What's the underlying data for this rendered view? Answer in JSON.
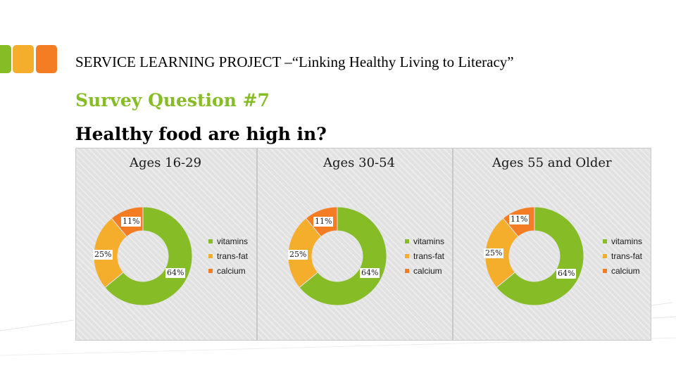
{
  "header": {
    "project_title": "SERVICE LEARNING PROJECT –“Linking Healthy Living to Literacy”",
    "survey_question": "Survey Question #7",
    "question_text": "Healthy food are high in?"
  },
  "colors": {
    "green": "#86bc25",
    "yellow": "#f5ad2c",
    "orange": "#f47d24"
  },
  "chart_data": [
    {
      "type": "pie",
      "title": "Ages 16-29",
      "categories": [
        "vitamins",
        "trans-fat",
        "calcium"
      ],
      "values": [
        64,
        25,
        11
      ],
      "labels": [
        "64%",
        "25%",
        "11%"
      ],
      "legend": "right"
    },
    {
      "type": "pie",
      "title": "Ages 30-54",
      "categories": [
        "vitamins",
        "trans-fat",
        "calcium"
      ],
      "values": [
        64,
        25,
        11
      ],
      "labels": [
        "64%",
        "25%",
        "11%"
      ],
      "legend": "right"
    },
    {
      "type": "pie",
      "title": "Ages 55 and Older",
      "categories": [
        "vitamins",
        "trans-fat",
        "calcium"
      ],
      "values": [
        64,
        25,
        11
      ],
      "labels": [
        "64%",
        "25%",
        "11%"
      ],
      "legend": "right"
    }
  ]
}
